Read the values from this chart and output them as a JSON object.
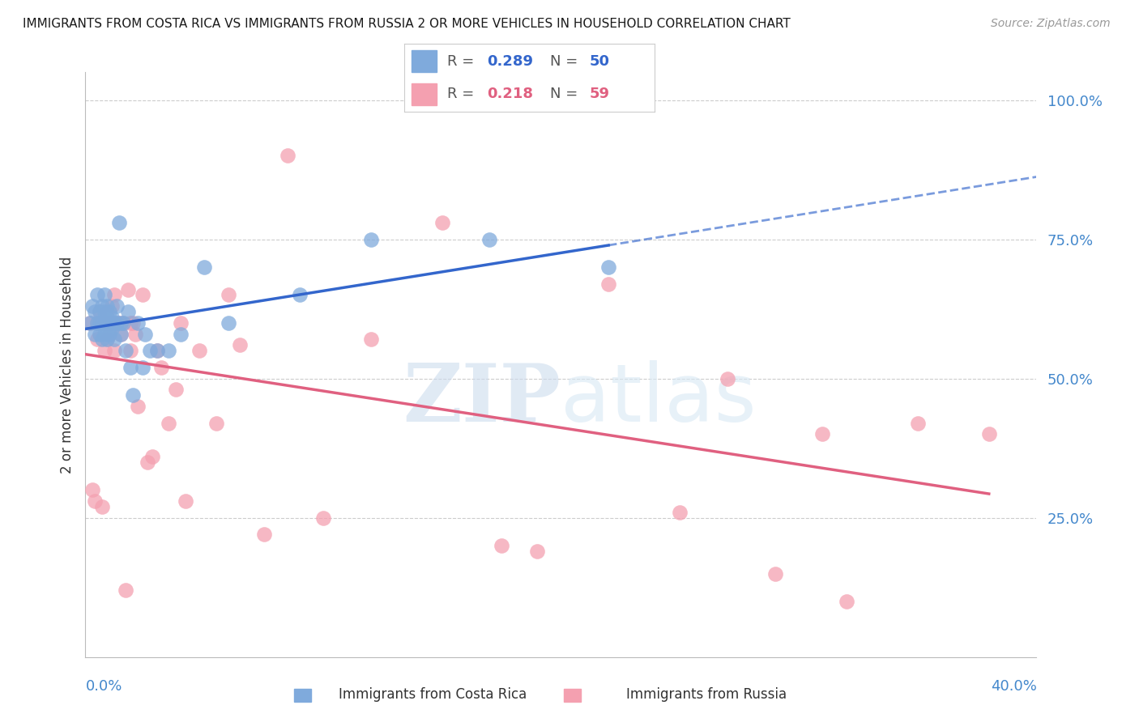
{
  "title": "IMMIGRANTS FROM COSTA RICA VS IMMIGRANTS FROM RUSSIA 2 OR MORE VEHICLES IN HOUSEHOLD CORRELATION CHART",
  "source": "Source: ZipAtlas.com",
  "ylabel": "2 or more Vehicles in Household",
  "xlim": [
    0.0,
    0.4
  ],
  "ylim": [
    0.0,
    1.05
  ],
  "costa_rica_R": 0.289,
  "costa_rica_N": 50,
  "russia_R": 0.218,
  "russia_N": 59,
  "costa_rica_color": "#7faadc",
  "russia_color": "#f4a0b0",
  "trend_costa_rica_color": "#3366cc",
  "trend_russia_color": "#e06080",
  "background_color": "#ffffff",
  "ytick_positions": [
    0.25,
    0.5,
    0.75,
    1.0
  ],
  "ytick_labels": [
    "25.0%",
    "50.0%",
    "75.0%",
    "100.0%"
  ],
  "costa_rica_x": [
    0.002,
    0.003,
    0.004,
    0.004,
    0.005,
    0.005,
    0.006,
    0.006,
    0.006,
    0.007,
    0.007,
    0.007,
    0.008,
    0.008,
    0.008,
    0.008,
    0.009,
    0.009,
    0.009,
    0.009,
    0.01,
    0.01,
    0.01,
    0.011,
    0.011,
    0.012,
    0.012,
    0.013,
    0.013,
    0.014,
    0.015,
    0.015,
    0.016,
    0.017,
    0.018,
    0.019,
    0.02,
    0.022,
    0.024,
    0.025,
    0.027,
    0.03,
    0.035,
    0.04,
    0.05,
    0.06,
    0.09,
    0.12,
    0.17,
    0.22
  ],
  "costa_rica_y": [
    0.6,
    0.63,
    0.58,
    0.62,
    0.6,
    0.65,
    0.58,
    0.6,
    0.62,
    0.57,
    0.6,
    0.63,
    0.58,
    0.6,
    0.62,
    0.65,
    0.57,
    0.59,
    0.61,
    0.63,
    0.58,
    0.6,
    0.62,
    0.59,
    0.61,
    0.57,
    0.6,
    0.6,
    0.63,
    0.78,
    0.58,
    0.6,
    0.6,
    0.55,
    0.62,
    0.52,
    0.47,
    0.6,
    0.52,
    0.58,
    0.55,
    0.55,
    0.55,
    0.58,
    0.7,
    0.6,
    0.65,
    0.75,
    0.75,
    0.7
  ],
  "russia_x": [
    0.002,
    0.003,
    0.004,
    0.005,
    0.005,
    0.006,
    0.006,
    0.007,
    0.007,
    0.008,
    0.008,
    0.009,
    0.009,
    0.009,
    0.01,
    0.01,
    0.011,
    0.011,
    0.012,
    0.012,
    0.013,
    0.014,
    0.015,
    0.016,
    0.017,
    0.018,
    0.019,
    0.019,
    0.02,
    0.021,
    0.022,
    0.024,
    0.026,
    0.028,
    0.03,
    0.032,
    0.035,
    0.038,
    0.04,
    0.042,
    0.048,
    0.055,
    0.06,
    0.065,
    0.075,
    0.085,
    0.1,
    0.12,
    0.15,
    0.175,
    0.19,
    0.22,
    0.25,
    0.27,
    0.29,
    0.31,
    0.32,
    0.35,
    0.38
  ],
  "russia_y": [
    0.6,
    0.3,
    0.28,
    0.57,
    0.6,
    0.6,
    0.62,
    0.27,
    0.6,
    0.55,
    0.6,
    0.57,
    0.6,
    0.62,
    0.58,
    0.6,
    0.6,
    0.63,
    0.55,
    0.65,
    0.6,
    0.6,
    0.58,
    0.6,
    0.12,
    0.66,
    0.55,
    0.6,
    0.6,
    0.58,
    0.45,
    0.65,
    0.35,
    0.36,
    0.55,
    0.52,
    0.42,
    0.48,
    0.6,
    0.28,
    0.55,
    0.42,
    0.65,
    0.56,
    0.22,
    0.9,
    0.25,
    0.57,
    0.78,
    0.2,
    0.19,
    0.67,
    0.26,
    0.5,
    0.15,
    0.4,
    0.1,
    0.42,
    0.4
  ]
}
